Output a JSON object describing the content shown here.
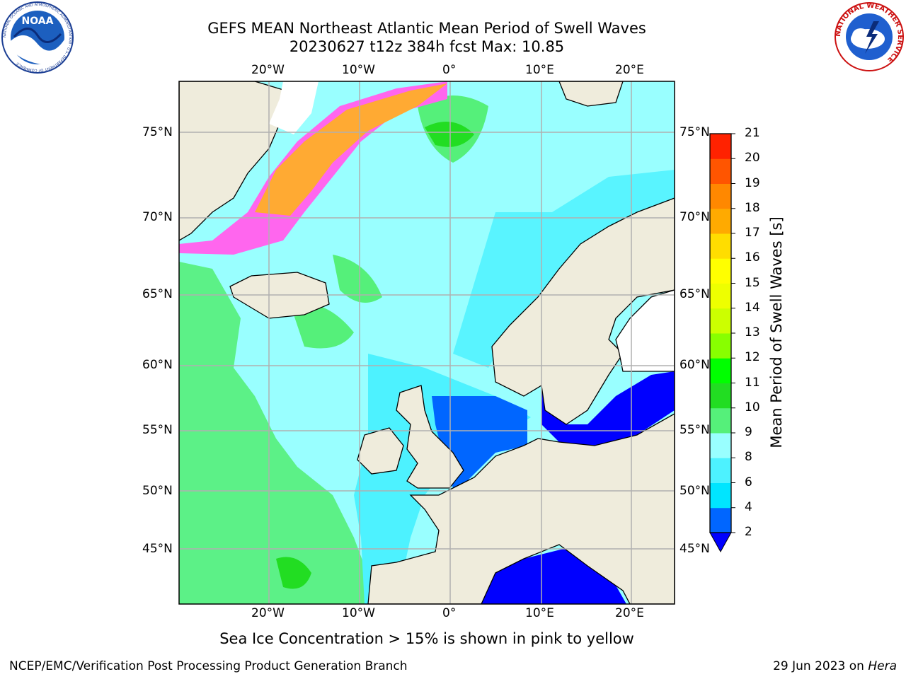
{
  "title": {
    "line1": "GEFS MEAN Northeast Atlantic Mean Period of Swell Waves",
    "line2": "20230627 t12z 384h fcst   Max: 10.85"
  },
  "logos": {
    "left_text": "NOAA",
    "left_ring": "NATIONAL OCEANIC AND ATMOSPHERIC ADMINISTRATION · U.S. DEPARTMENT OF COMMERCE",
    "right_ring": "NATIONAL WEATHER SERVICE"
  },
  "map": {
    "lon_labels": [
      "20°W",
      "10°W",
      "0°",
      "10°E",
      "20°E"
    ],
    "lat_labels": [
      "75°N",
      "70°N",
      "65°N",
      "60°N",
      "55°N",
      "50°N",
      "45°N"
    ],
    "colors": {
      "land": "#efecdc",
      "ice_mask": "#ffffff",
      "grid": "#b0b0b0"
    }
  },
  "colorbar": {
    "label": "Mean Period of Swell Waves [s]",
    "ticks": [
      "2",
      "4",
      "6",
      "8",
      "9",
      "10",
      "11",
      "12",
      "13",
      "14",
      "15",
      "16",
      "17",
      "18",
      "19",
      "20",
      "21"
    ],
    "colors": [
      "#0066ff",
      "#00e5ff",
      "#4df2ff",
      "#99ffff",
      "#55f07a",
      "#22dd22",
      "#00ff00",
      "#88ff00",
      "#ccff00",
      "#eeff00",
      "#ffff00",
      "#ffdd00",
      "#ffaa00",
      "#ff8800",
      "#ff5500",
      "#ff2200"
    ],
    "under_color": "#0000ff"
  },
  "note": "Sea Ice Concentration > 15% is shown in pink to yellow",
  "footer": {
    "left": "NCEP/EMC/Verification Post Processing Product Generation Branch",
    "right_date": "29 Jun 2023 on ",
    "right_host": "Hera"
  }
}
